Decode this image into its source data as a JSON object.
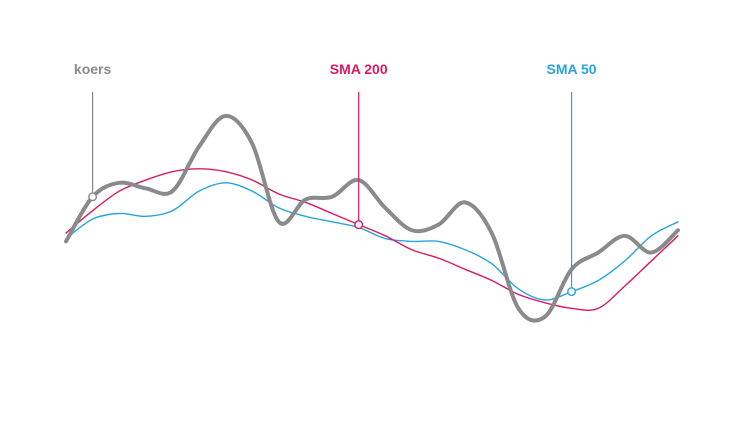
{
  "chart_data": {
    "type": "line",
    "title": "",
    "xlabel": "",
    "ylabel": "",
    "grid": false,
    "legend": "annotation-callouts",
    "x": [
      0,
      1,
      2,
      3,
      4,
      5,
      6,
      7,
      8,
      9,
      10,
      11,
      12,
      13,
      14,
      15,
      16,
      17,
      18,
      19,
      20,
      21,
      22,
      23
    ],
    "xlim": [
      0,
      23
    ],
    "ylim": [
      0,
      100
    ],
    "series": [
      {
        "name": "koers",
        "color": "#8a8a8a",
        "values": [
          40,
          56,
          61,
          59,
          58,
          74,
          85,
          75,
          47,
          55,
          56,
          62,
          52,
          44,
          46,
          54,
          43,
          16,
          13,
          30,
          36,
          42,
          36,
          44
        ]
      },
      {
        "name": "SMA 200",
        "color": "#d81b60",
        "values": [
          43,
          51,
          58,
          62,
          65,
          66,
          65,
          62,
          57,
          54,
          50,
          46,
          42,
          37,
          34,
          30,
          26,
          21,
          18,
          16,
          16,
          24,
          33,
          42
        ]
      },
      {
        "name": "SMA 50",
        "color": "#29a3e0",
        "values": [
          41,
          48,
          50,
          49,
          51,
          58,
          61,
          58,
          52,
          49,
          47,
          45,
          41,
          40,
          40,
          37,
          32,
          23,
          19,
          22,
          26,
          33,
          42,
          47
        ]
      }
    ],
    "annotations": [
      {
        "text": "koers",
        "series_index": 0,
        "x": 1
      },
      {
        "text": "SMA 200",
        "series_index": 1,
        "x": 11
      },
      {
        "text": "SMA 50",
        "series_index": 2,
        "x": 19
      }
    ]
  }
}
